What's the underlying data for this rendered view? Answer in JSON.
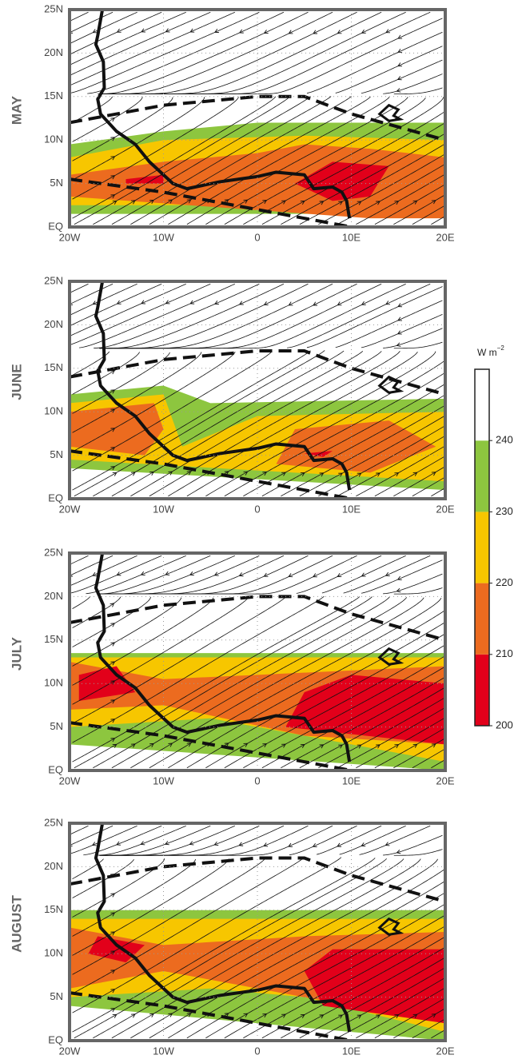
{
  "panels": [
    {
      "label": "MAY",
      "xlim": [
        -20,
        20
      ],
      "ylim": [
        0,
        25
      ],
      "xticks": [
        {
          "value": -20,
          "label": "20W"
        },
        {
          "value": -10,
          "label": "10W"
        },
        0,
        {
          "value": 10,
          "label": "10E"
        },
        {
          "value": 20,
          "label": "20E"
        }
      ],
      "yticks": [
        {
          "value": 0,
          "label": "EQ"
        },
        {
          "value": 5,
          "label": "5N"
        },
        {
          "value": 10,
          "label": "10N"
        },
        {
          "value": 15,
          "label": "15N"
        },
        {
          "value": 20,
          "label": "20N"
        },
        {
          "value": 25,
          "label": "25N"
        }
      ]
    },
    {
      "label": "JUNE",
      "xlim": [
        -20,
        20
      ],
      "ylim": [
        0,
        25
      ],
      "xticks": [
        {
          "value": -20,
          "label": "20W"
        },
        {
          "value": -10,
          "label": "10W"
        },
        0,
        {
          "value": 10,
          "label": "10E"
        },
        {
          "value": 20,
          "label": "20E"
        }
      ],
      "yticks": [
        {
          "value": 0,
          "label": "EQ"
        },
        {
          "value": 5,
          "label": "5N"
        },
        {
          "value": 10,
          "label": "10N"
        },
        {
          "value": 15,
          "label": "15N"
        },
        {
          "value": 20,
          "label": "20N"
        },
        {
          "value": 25,
          "label": "25N"
        }
      ]
    },
    {
      "label": "JULY",
      "xlim": [
        -20,
        20
      ],
      "ylim": [
        0,
        25
      ],
      "xticks": [
        {
          "value": -20,
          "label": "20W"
        },
        {
          "value": -10,
          "label": "10W"
        },
        0,
        {
          "value": 10,
          "label": "10E"
        },
        {
          "value": 20,
          "label": "20E"
        }
      ],
      "yticks": [
        {
          "value": 0,
          "label": "EQ"
        },
        {
          "value": 5,
          "label": "5N"
        },
        {
          "value": 10,
          "label": "10N"
        },
        {
          "value": 15,
          "label": "15N"
        },
        {
          "value": 20,
          "label": "20N"
        },
        {
          "value": 25,
          "label": "25N"
        }
      ]
    },
    {
      "label": "AUGUST",
      "xlim": [
        -20,
        20
      ],
      "ylim": [
        0,
        25
      ],
      "xticks": [
        {
          "value": -20,
          "label": "20W"
        },
        {
          "value": -10,
          "label": "10W"
        },
        0,
        {
          "value": 10,
          "label": "10E"
        },
        {
          "value": 20,
          "label": "20E"
        }
      ],
      "yticks": [
        {
          "value": 0,
          "label": "EQ"
        },
        {
          "value": 5,
          "label": "5N"
        },
        {
          "value": 10,
          "label": "10N"
        },
        {
          "value": 15,
          "label": "15N"
        },
        {
          "value": 20,
          "label": "20N"
        },
        {
          "value": 25,
          "label": "25N"
        }
      ]
    }
  ],
  "colorbar": {
    "unit": "W m",
    "unit_exponent": "−2",
    "lim": [
      200,
      250
    ],
    "ticks": [
      200,
      210,
      220,
      230,
      240
    ],
    "colors": [
      "#e2001a",
      "#ec6b1f",
      "#f7c600",
      "#8dc63f",
      "#ffffff"
    ]
  }
}
